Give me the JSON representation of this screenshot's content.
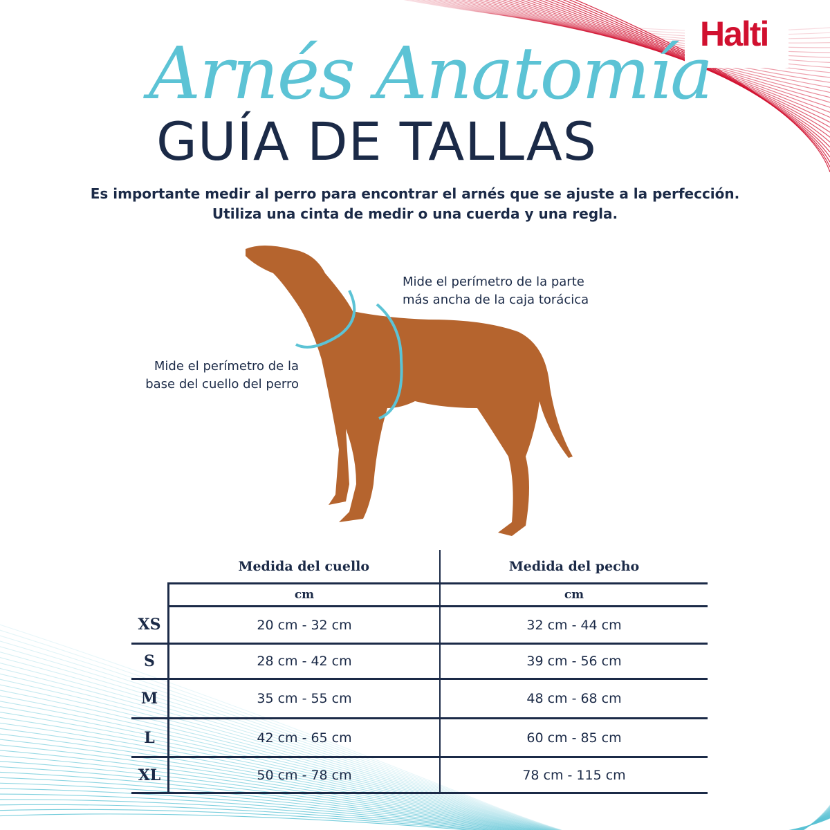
{
  "brand": {
    "logo": "Halti",
    "color": "#d1102f"
  },
  "header": {
    "script_title": "Arnés Anatomía",
    "title": "GUÍA DE TALLAS",
    "intro_line1": "Es importante medir al perro para encontrar el arnés que se ajuste a la perfección.",
    "intro_line2": "Utiliza una cinta de medir o una cuerda y una regla."
  },
  "illustration": {
    "neck_callout_line1": "Mide el perímetro de la",
    "neck_callout_line2": "base del cuello del perro",
    "chest_callout_line1": "Mide el perímetro de la parte",
    "chest_callout_line2": "más ancha de la caja torácica",
    "accent_color": "#5cc3d5",
    "dog_color": "#b5642e"
  },
  "table": {
    "columns": [
      "Medida del cuello",
      "Medida del pecho"
    ],
    "units": [
      "cm",
      "cm"
    ],
    "rows": [
      {
        "size": "XS",
        "neck": "20 cm - 32 cm",
        "chest": "32 cm - 44 cm"
      },
      {
        "size": "S",
        "neck": "28 cm - 42 cm",
        "chest": "39 cm - 56 cm"
      },
      {
        "size": "M",
        "neck": "35 cm - 55 cm",
        "chest": "48 cm - 68 cm"
      },
      {
        "size": "L",
        "neck": "42 cm - 65 cm",
        "chest": "60 cm - 85 cm"
      },
      {
        "size": "XL",
        "neck": "50 cm - 78 cm",
        "chest": "78 cm - 115 cm"
      }
    ]
  }
}
